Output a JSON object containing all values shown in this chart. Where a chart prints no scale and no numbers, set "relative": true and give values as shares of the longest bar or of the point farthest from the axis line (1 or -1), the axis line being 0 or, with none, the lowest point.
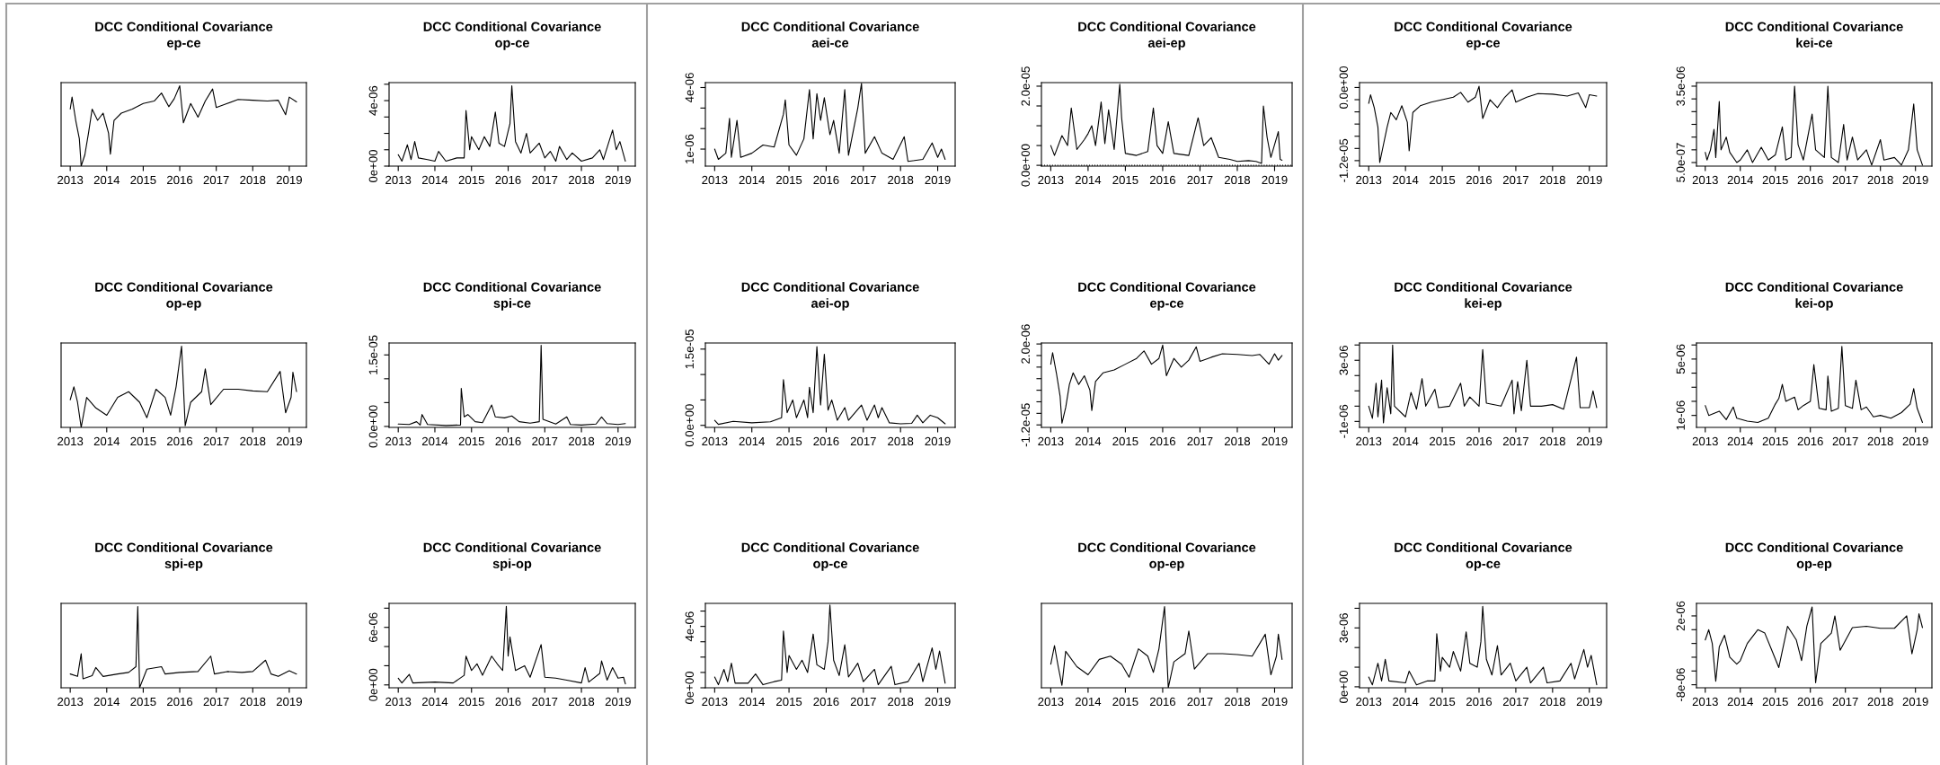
{
  "chart_data": [
    {
      "type": "line",
      "title": "DCC Conditional Covariance",
      "subtitle": "ep-ce",
      "relative": true,
      "xlim": [
        2012.75,
        2019.47
      ],
      "xticks": [
        2013,
        2014,
        2015,
        2016,
        2017,
        2018,
        2019
      ],
      "x": [
        2013.0,
        2013.05,
        2013.15,
        2013.25,
        2013.3,
        2013.4,
        2013.5,
        2013.6,
        2013.75,
        2013.9,
        2014.05,
        2014.1,
        2014.2,
        2014.4,
        2014.7,
        2015.0,
        2015.3,
        2015.5,
        2015.7,
        2015.85,
        2016.0,
        2016.1,
        2016.3,
        2016.5,
        2016.7,
        2016.9,
        2017.0,
        2017.3,
        2017.6,
        2018.0,
        2018.4,
        2018.7,
        2018.9,
        2019.0,
        2019.2
      ],
      "series": [
        {
          "color": "#000000",
          "values": [
            0.71,
            0.86,
            0.57,
            0.34,
            0,
            0.14,
            0.41,
            0.71,
            0.57,
            0.66,
            0.41,
            0.15,
            0.57,
            0.66,
            0.71,
            0.78,
            0.81,
            0.91,
            0.74,
            0.84,
            1,
            0.54,
            0.78,
            0.61,
            0.81,
            0.96,
            0.73,
            0.78,
            0.83,
            0.82,
            0.81,
            0.82,
            0.64,
            0.86,
            0.8
          ]
        }
      ]
    },
    {
      "type": "line",
      "title": "DCC Conditional Covariance",
      "subtitle": "op-ce",
      "xlim": [
        2012.75,
        2019.47
      ],
      "xticks": [
        2013,
        2014,
        2015,
        2016,
        2017,
        2018,
        2019
      ],
      "ylim": [
        0,
        5.1e-06
      ],
      "yticks": [
        {
          "value": 0,
          "label": "0e+00"
        },
        {
          "value": 1e-06,
          "label": null
        },
        {
          "value": 2e-06,
          "label": null
        },
        {
          "value": 3e-06,
          "label": null
        },
        {
          "value": 4e-06,
          "label": "4e-06"
        },
        {
          "value": 5e-06,
          "label": null
        }
      ],
      "x": [
        2013.0,
        2013.1,
        2013.25,
        2013.35,
        2013.45,
        2013.55,
        2013.8,
        2014.0,
        2014.1,
        2014.3,
        2014.6,
        2014.8,
        2014.85,
        2014.95,
        2015.0,
        2015.2,
        2015.35,
        2015.5,
        2015.65,
        2015.75,
        2015.9,
        2016.05,
        2016.1,
        2016.2,
        2016.35,
        2016.5,
        2016.6,
        2016.85,
        2017.0,
        2017.15,
        2017.3,
        2017.4,
        2017.6,
        2017.75,
        2018.0,
        2018.3,
        2018.5,
        2018.6,
        2018.85,
        2018.95,
        2019.05,
        2019.2
      ],
      "series": [
        {
          "color": "#000000",
          "values": [
            7e-07,
            3e-07,
            1.3e-06,
            4e-07,
            1.5e-06,
            5e-07,
            4e-07,
            3e-07,
            9e-07,
            3e-07,
            5e-07,
            5e-07,
            3.4e-06,
            1e-06,
            1.8e-06,
            1e-06,
            1.8e-06,
            1.2e-06,
            3.3e-06,
            1.4e-06,
            1.2e-06,
            2.6e-06,
            4.9e-06,
            1.5e-06,
            8e-07,
            2e-06,
            8e-07,
            1.4e-06,
            5e-07,
            9e-07,
            3e-07,
            1.2e-06,
            4e-07,
            8e-07,
            3e-07,
            5e-07,
            1e-06,
            4e-07,
            2.2e-06,
            1e-06,
            1.5e-06,
            3e-07
          ]
        }
      ]
    },
    {
      "type": "line",
      "title": "DCC Conditional Covariance",
      "subtitle": "aei-ce",
      "xlim": [
        2012.75,
        2019.47
      ],
      "xticks": [
        2013,
        2014,
        2015,
        2016,
        2017,
        2018,
        2019
      ],
      "ylim": [
        1.7e-07,
        4.24e-06
      ],
      "yticks": [
        {
          "value": 1e-06,
          "label": "1e-06"
        },
        {
          "value": 2e-06,
          "label": null
        },
        {
          "value": 3e-06,
          "label": null
        },
        {
          "value": 4e-06,
          "label": "4e-06"
        }
      ],
      "x": [
        2013.0,
        2013.1,
        2013.3,
        2013.4,
        2013.45,
        2013.6,
        2013.7,
        2014.0,
        2014.3,
        2014.6,
        2014.85,
        2014.9,
        2015.0,
        2015.2,
        2015.4,
        2015.55,
        2015.65,
        2015.75,
        2015.85,
        2015.95,
        2016.1,
        2016.2,
        2016.35,
        2016.5,
        2016.6,
        2016.85,
        2016.95,
        2017.05,
        2017.3,
        2017.5,
        2017.8,
        2018.1,
        2018.2,
        2018.6,
        2018.85,
        2019.0,
        2019.1,
        2019.2
      ],
      "series": [
        {
          "color": "#000000",
          "values": [
            1e-06,
            5e-07,
            8e-07,
            2.5e-06,
            6e-07,
            2.4e-06,
            6e-07,
            8e-07,
            1.2e-06,
            1.1e-06,
            2.7e-06,
            3.4e-06,
            1.2e-06,
            7e-07,
            1.5e-06,
            3.9e-06,
            1.5e-06,
            3.7e-06,
            2.4e-06,
            3.5e-06,
            1.7e-06,
            2.4e-06,
            8e-07,
            3.9e-06,
            7e-07,
            3e-06,
            4.2e-06,
            8e-07,
            1.6e-06,
            8e-07,
            5e-07,
            1.6e-06,
            4e-07,
            5e-07,
            1.3e-06,
            6e-07,
            1e-06,
            5e-07
          ]
        }
      ]
    },
    {
      "type": "line",
      "title": "DCC Conditional Covariance",
      "subtitle": "aei-ep",
      "xlim": [
        2012.75,
        2019.47
      ],
      "xticks": [
        2013,
        2014,
        2015,
        2016,
        2017,
        2018,
        2019
      ],
      "ylim": [
        -2e-07,
        2.09e-05
      ],
      "yticks": [
        {
          "value": 0,
          "label": "0.0e+00"
        },
        {
          "value": 5e-06,
          "label": null
        },
        {
          "value": 1e-05,
          "label": null
        },
        {
          "value": 1.5e-05,
          "label": null
        },
        {
          "value": 2e-05,
          "label": "2.0e-05"
        }
      ],
      "ref_lines": [
        {
          "axis": "y",
          "value": 0,
          "line_style": "dotted",
          "color": "#000000"
        }
      ],
      "x": [
        2013.0,
        2013.1,
        2013.3,
        2013.45,
        2013.55,
        2013.7,
        2013.9,
        2014.0,
        2014.1,
        2014.2,
        2014.35,
        2014.45,
        2014.55,
        2014.7,
        2014.85,
        2014.9,
        2015.0,
        2015.3,
        2015.6,
        2015.75,
        2015.85,
        2016.0,
        2016.15,
        2016.3,
        2016.7,
        2016.95,
        2017.1,
        2017.3,
        2017.5,
        2017.8,
        2018.0,
        2018.3,
        2018.5,
        2018.65,
        2018.7,
        2018.8,
        2018.9,
        2019.1,
        2019.15,
        2019.2
      ],
      "series": [
        {
          "color": "#000000",
          "values": [
            5e-06,
            2.5e-06,
            7.5e-06,
            5e-06,
            1.45e-05,
            4e-06,
            6.5e-06,
            8e-06,
            1e-05,
            5e-06,
            1.6e-05,
            5.5e-06,
            1.4e-05,
            4e-06,
            2.05e-05,
            1.2e-05,
            3e-06,
            2.5e-06,
            3.5e-06,
            1.45e-05,
            5e-06,
            3e-06,
            1.1e-05,
            3e-06,
            2.5e-06,
            1.2e-05,
            5e-06,
            7e-06,
            2e-06,
            1.5e-06,
            1e-06,
            1.2e-06,
            1e-06,
            5e-07,
            1.5e-05,
            7e-06,
            2e-06,
            8.5e-06,
            1.5e-06,
            1.3e-06
          ]
        }
      ]
    },
    {
      "type": "line",
      "title": "DCC Conditional Covariance",
      "subtitle": "ep-ce",
      "xlim": [
        2012.75,
        2019.47
      ],
      "xticks": [
        2013,
        2014,
        2015,
        2016,
        2017,
        2018,
        2019
      ],
      "ylim": [
        -1.29e-05,
        8e-07
      ],
      "yticks": [
        {
          "value": -1.2e-05,
          "label": "-1.2e-05"
        },
        {
          "value": -1e-05,
          "label": null
        },
        {
          "value": -8e-06,
          "label": null
        },
        {
          "value": -6e-06,
          "label": null
        },
        {
          "value": -4e-06,
          "label": null
        },
        {
          "value": -2e-06,
          "label": null
        },
        {
          "value": 0,
          "label": "0.0e+00"
        }
      ],
      "x": [
        2013.0,
        2013.05,
        2013.15,
        2013.25,
        2013.3,
        2013.4,
        2013.5,
        2013.6,
        2013.75,
        2013.9,
        2014.05,
        2014.1,
        2014.2,
        2014.4,
        2014.7,
        2015.0,
        2015.3,
        2015.5,
        2015.7,
        2015.9,
        2016.0,
        2016.1,
        2016.3,
        2016.5,
        2016.7,
        2016.9,
        2017.0,
        2017.3,
        2017.6,
        2018.0,
        2018.4,
        2018.7,
        2018.9,
        2019.0,
        2019.2
      ],
      "series": [
        {
          "color": "#000000",
          "values": [
            -2.6e-06,
            -1.2e-06,
            -3.3e-06,
            -6.5e-06,
            -1.23e-05,
            -9.4e-06,
            -6.5e-06,
            -4.1e-06,
            -5.3e-06,
            -3e-06,
            -5.7e-06,
            -1.04e-05,
            -4.1e-06,
            -3e-06,
            -2.4e-06,
            -2e-06,
            -1.6e-06,
            -8e-07,
            -2.4e-06,
            -1.6e-06,
            2e-07,
            -5.1e-06,
            -2e-06,
            -3.3e-06,
            -1.6e-06,
            -4e-07,
            -2.4e-06,
            -1.6e-06,
            -1e-06,
            -1.1e-06,
            -1.4e-06,
            -9e-07,
            -3.3e-06,
            -1.2e-06,
            -1.4e-06
          ]
        }
      ]
    },
    {
      "type": "line",
      "title": "DCC Conditional Covariance",
      "subtitle": "kei-ce",
      "xlim": [
        2012.75,
        2019.47
      ],
      "xticks": [
        2013,
        2014,
        2015,
        2016,
        2017,
        2018,
        2019
      ],
      "ylim": [
        3.6e-07,
        3.64e-06
      ],
      "yticks": [
        {
          "value": 5e-07,
          "label": "5.0e-07"
        },
        {
          "value": 1e-06,
          "label": null
        },
        {
          "value": 1.5e-06,
          "label": null
        },
        {
          "value": 2e-06,
          "label": null
        },
        {
          "value": 2.5e-06,
          "label": null
        },
        {
          "value": 3e-06,
          "label": null
        },
        {
          "value": 3.5e-06,
          "label": "3.5e-06"
        }
      ],
      "x": [
        2013.0,
        2013.05,
        2013.15,
        2013.25,
        2013.3,
        2013.4,
        2013.45,
        2013.6,
        2013.7,
        2013.9,
        2014.0,
        2014.2,
        2014.35,
        2014.6,
        2014.8,
        2015.0,
        2015.2,
        2015.3,
        2015.45,
        2015.55,
        2015.65,
        2015.8,
        2016.05,
        2016.15,
        2016.4,
        2016.5,
        2016.6,
        2016.8,
        2016.95,
        2017.05,
        2017.2,
        2017.35,
        2017.6,
        2017.75,
        2018.0,
        2018.1,
        2018.4,
        2018.6,
        2018.8,
        2018.95,
        2019.05,
        2019.2
      ],
      "series": [
        {
          "color": "#000000",
          "values": [
            9e-07,
            6e-07,
            1e-06,
            1.8e-06,
            7e-07,
            2.9e-06,
            1e-06,
            1.5e-06,
            9e-07,
            5e-07,
            6e-07,
            1e-06,
            5e-07,
            1.1e-06,
            6e-07,
            8e-07,
            1.9e-06,
            6e-07,
            7e-07,
            3.5e-06,
            1.2e-06,
            6e-07,
            2.4e-06,
            1e-06,
            7e-07,
            3.5e-06,
            7e-07,
            5e-07,
            2e-06,
            6e-07,
            1.5e-06,
            6e-07,
            1e-06,
            4e-07,
            1.4e-06,
            6e-07,
            7e-07,
            4e-07,
            1e-06,
            2.8e-06,
            1e-06,
            4e-07
          ]
        }
      ]
    },
    {
      "type": "line",
      "title": "DCC Conditional Covariance",
      "subtitle": "op-ep",
      "relative": true,
      "xlim": [
        2012.75,
        2019.47
      ],
      "xticks": [
        2013,
        2014,
        2015,
        2016,
        2017,
        2018,
        2019
      ],
      "x": [
        2013.0,
        2013.1,
        2013.2,
        2013.3,
        2013.45,
        2013.7,
        2014.0,
        2014.3,
        2014.6,
        2014.9,
        2015.1,
        2015.35,
        2015.6,
        2015.75,
        2015.9,
        2016.05,
        2016.15,
        2016.3,
        2016.6,
        2016.7,
        2016.85,
        2017.2,
        2017.6,
        2018.0,
        2018.4,
        2018.75,
        2018.9,
        2019.05,
        2019.1,
        2019.2
      ],
      "series": [
        {
          "color": "#000000",
          "values": [
            0.34,
            0.5,
            0.31,
            0,
            0.37,
            0.24,
            0.15,
            0.37,
            0.44,
            0.31,
            0.12,
            0.47,
            0.37,
            0.15,
            0.5,
            1,
            0.02,
            0.31,
            0.44,
            0.72,
            0.28,
            0.47,
            0.47,
            0.45,
            0.44,
            0.69,
            0.18,
            0.37,
            0.68,
            0.44
          ]
        }
      ]
    },
    {
      "type": "line",
      "title": "DCC Conditional Covariance",
      "subtitle": "spi-ce",
      "xlim": [
        2012.75,
        2019.47
      ],
      "xticks": [
        2013,
        2014,
        2015,
        2016,
        2017,
        2018,
        2019
      ],
      "ylim": [
        -2e-07,
        1.75e-05
      ],
      "yticks": [
        {
          "value": 0,
          "label": "0.0e+00"
        },
        {
          "value": 5e-06,
          "label": null
        },
        {
          "value": 1e-05,
          "label": null
        },
        {
          "value": 1.5e-05,
          "label": "1.5e-05"
        }
      ],
      "x": [
        2013.0,
        2013.3,
        2013.5,
        2013.6,
        2013.65,
        2013.8,
        2014.3,
        2014.7,
        2014.72,
        2014.8,
        2014.9,
        2015.1,
        2015.3,
        2015.55,
        2015.65,
        2015.9,
        2016.1,
        2016.3,
        2016.6,
        2016.85,
        2016.9,
        2016.95,
        2017.3,
        2017.6,
        2017.7,
        2018.0,
        2018.4,
        2018.55,
        2018.7,
        2019.0,
        2019.2
      ],
      "series": [
        {
          "color": "#000000",
          "values": [
            5e-07,
            4e-07,
            1e-06,
            3e-07,
            2.5e-06,
            4e-07,
            2e-07,
            3e-07,
            8e-06,
            2e-06,
            2.5e-06,
            1e-06,
            8e-07,
            4.5e-06,
            2e-06,
            1.8e-06,
            2.2e-06,
            1e-06,
            7e-07,
            1e-06,
            1.7e-05,
            1.5e-06,
            5e-07,
            2e-06,
            4e-07,
            3e-07,
            5e-07,
            2e-06,
            6e-07,
            4e-07,
            6e-07
          ]
        }
      ]
    },
    {
      "type": "line",
      "title": "DCC Conditional Covariance",
      "subtitle": "aei-op",
      "xlim": [
        2012.75,
        2019.47
      ],
      "xticks": [
        2013,
        2014,
        2015,
        2016,
        2017,
        2018,
        2019
      ],
      "ylim": [
        -4e-07,
        1.62e-05
      ],
      "yticks": [
        {
          "value": 0,
          "label": "0.0e+00"
        },
        {
          "value": 5e-06,
          "label": null
        },
        {
          "value": 1e-05,
          "label": null
        },
        {
          "value": 1.5e-05,
          "label": "1.5e-05"
        }
      ],
      "x": [
        2013.0,
        2013.1,
        2013.5,
        2014.0,
        2014.5,
        2014.8,
        2014.85,
        2014.95,
        2015.1,
        2015.2,
        2015.4,
        2015.5,
        2015.55,
        2015.65,
        2015.75,
        2015.85,
        2015.95,
        2016.05,
        2016.15,
        2016.3,
        2016.5,
        2016.6,
        2016.95,
        2017.1,
        2017.3,
        2017.4,
        2017.5,
        2017.7,
        2018.0,
        2018.3,
        2018.45,
        2018.6,
        2018.8,
        2019.0,
        2019.2
      ],
      "series": [
        {
          "color": "#000000",
          "values": [
            1e-06,
            2e-07,
            8e-07,
            5e-07,
            7e-07,
            1.5e-06,
            9e-06,
            2.5e-06,
            5e-06,
            1.5e-06,
            5e-06,
            1.5e-06,
            7.5e-06,
            2.5e-06,
            1.55e-05,
            4e-06,
            1.4e-05,
            3e-06,
            5e-06,
            1e-06,
            3.5e-06,
            1e-06,
            4e-06,
            1e-06,
            4e-06,
            1.5e-06,
            3.5e-06,
            5e-07,
            3e-07,
            4e-07,
            2e-06,
            5e-07,
            2e-06,
            1.5e-06,
            3e-07
          ]
        }
      ]
    },
    {
      "type": "line",
      "title": "DCC Conditional Covariance",
      "subtitle": "ep-ce",
      "xlim": [
        2012.75,
        2019.47
      ],
      "xticks": [
        2013,
        2014,
        2015,
        2016,
        2017,
        2018,
        2019
      ],
      "ylim": [
        -1.243e-05,
        2.17e-06
      ],
      "yticks": [
        {
          "value": -1.2e-05,
          "label": "-1.2e-05"
        },
        {
          "value": -1e-05,
          "label": null
        },
        {
          "value": -8e-06,
          "label": null
        },
        {
          "value": -6e-06,
          "label": null
        },
        {
          "value": -4e-06,
          "label": null
        },
        {
          "value": -2e-06,
          "label": null
        },
        {
          "value": 0,
          "label": null
        },
        {
          "value": 2e-06,
          "label": "2.0e-06"
        }
      ],
      "x": [
        2013.0,
        2013.05,
        2013.15,
        2013.25,
        2013.3,
        2013.4,
        2013.5,
        2013.6,
        2013.75,
        2013.9,
        2014.05,
        2014.1,
        2014.2,
        2014.4,
        2014.7,
        2015.0,
        2015.3,
        2015.5,
        2015.7,
        2015.9,
        2016.0,
        2016.1,
        2016.3,
        2016.5,
        2016.7,
        2016.9,
        2017.0,
        2017.3,
        2017.6,
        2018.0,
        2018.4,
        2018.6,
        2018.85,
        2019.0,
        2019.1,
        2019.2
      ],
      "series": [
        {
          "color": "#000000",
          "values": [
            -1.5e-06,
            5e-07,
            -3e-06,
            -7e-06,
            -1.17e-05,
            -9e-06,
            -5e-06,
            -3e-06,
            -5e-06,
            -3.5e-06,
            -6e-06,
            -9.5e-06,
            -4.5e-06,
            -3e-06,
            -2.5e-06,
            -1.5e-06,
            -5e-07,
            8e-07,
            -1.5e-06,
            -5e-07,
            1.8e-06,
            -3.5e-06,
            -5e-07,
            -2e-06,
            -8e-07,
            1.5e-06,
            -1e-06,
            -3e-07,
            3e-07,
            2e-07,
            0,
            2e-07,
            -1.5e-06,
            3e-07,
            -8e-07,
            0
          ]
        }
      ]
    },
    {
      "type": "line",
      "title": "DCC Conditional Covariance",
      "subtitle": "kei-ep",
      "xlim": [
        2012.75,
        2019.47
      ],
      "xticks": [
        2013,
        2014,
        2015,
        2016,
        2017,
        2018,
        2019
      ],
      "ylim": [
        -1.39e-06,
        4.13e-06
      ],
      "yticks": [
        {
          "value": -1e-06,
          "label": "-1e-06"
        },
        {
          "value": 0,
          "label": null
        },
        {
          "value": 1e-06,
          "label": null
        },
        {
          "value": 2e-06,
          "label": null
        },
        {
          "value": 3e-06,
          "label": "3e-06"
        },
        {
          "value": 4e-06,
          "label": null
        }
      ],
      "x": [
        2013.0,
        2013.1,
        2013.2,
        2013.25,
        2013.35,
        2013.4,
        2013.5,
        2013.6,
        2013.65,
        2013.7,
        2014.0,
        2014.15,
        2014.3,
        2014.45,
        2014.55,
        2014.8,
        2014.9,
        2015.2,
        2015.5,
        2015.6,
        2015.75,
        2016.0,
        2016.1,
        2016.2,
        2016.6,
        2016.9,
        2016.95,
        2017.05,
        2017.15,
        2017.3,
        2017.4,
        2017.7,
        2018.0,
        2018.3,
        2018.65,
        2018.75,
        2019.0,
        2019.1,
        2019.2
      ],
      "series": [
        {
          "color": "#000000",
          "values": [
            0,
            -8e-07,
            1.5e-06,
            -7e-07,
            1.7e-06,
            -1.1e-06,
            1.2e-06,
            -5e-07,
            4e-06,
            0,
            -7e-07,
            9e-07,
            -2e-07,
            1.8e-06,
            0,
            1.1e-06,
            -1e-07,
            0,
            1.5e-06,
            0,
            6e-07,
            0,
            3.7e-06,
            2e-07,
            0,
            1.7e-06,
            -5e-07,
            1.6e-06,
            -3e-07,
            3e-06,
            0,
            0,
            1e-07,
            -2e-07,
            3.2e-06,
            -1e-07,
            -1e-07,
            1e-06,
            -1e-07
          ]
        }
      ]
    },
    {
      "type": "line",
      "title": "DCC Conditional Covariance",
      "subtitle": "kei-op",
      "xlim": [
        2012.75,
        2019.47
      ],
      "xticks": [
        2013,
        2014,
        2015,
        2016,
        2017,
        2018,
        2019
      ],
      "ylim": [
        1.5e-07,
        6.14e-06
      ],
      "yticks": [
        {
          "value": 1e-06,
          "label": "1e-06"
        },
        {
          "value": 2e-06,
          "label": null
        },
        {
          "value": 3e-06,
          "label": null
        },
        {
          "value": 4e-06,
          "label": null
        },
        {
          "value": 5e-06,
          "label": "5e-06"
        },
        {
          "value": 6e-06,
          "label": null
        }
      ],
      "x": [
        2013.0,
        2013.1,
        2013.4,
        2013.6,
        2013.8,
        2013.9,
        2014.2,
        2014.5,
        2014.8,
        2015.0,
        2015.1,
        2015.2,
        2015.3,
        2015.55,
        2015.65,
        2015.8,
        2016.0,
        2016.1,
        2016.25,
        2016.45,
        2016.5,
        2016.6,
        2016.8,
        2016.9,
        2017.0,
        2017.2,
        2017.3,
        2017.45,
        2017.6,
        2017.8,
        2018.0,
        2018.3,
        2018.6,
        2018.85,
        2018.95,
        2019.05,
        2019.2
      ],
      "series": [
        {
          "color": "#000000",
          "values": [
            1.7e-06,
            1e-06,
            1.3e-06,
            7e-07,
            1.6e-06,
            8e-07,
            6e-07,
            5e-07,
            8e-07,
            1.8e-06,
            2.2e-06,
            3.2e-06,
            2e-06,
            2.3e-06,
            1.4e-06,
            1.7e-06,
            2e-06,
            4.6e-06,
            1.5e-06,
            1.4e-06,
            3.8e-06,
            1.3e-06,
            1.5e-06,
            5.9e-06,
            1.7e-06,
            1.5e-06,
            3.5e-06,
            1.4e-06,
            1.6e-06,
            9e-07,
            1e-06,
            8e-07,
            1.2e-06,
            1.8e-06,
            2.9e-06,
            1.5e-06,
            5e-07
          ]
        }
      ]
    },
    {
      "type": "line",
      "title": "DCC Conditional Covariance",
      "subtitle": "spi-ep",
      "relative": true,
      "xlim": [
        2012.75,
        2019.47
      ],
      "xticks": [
        2013,
        2014,
        2015,
        2016,
        2017,
        2018,
        2019
      ],
      "x": [
        2013.0,
        2013.2,
        2013.3,
        2013.35,
        2013.6,
        2013.7,
        2013.9,
        2014.3,
        2014.6,
        2014.8,
        2014.85,
        2014.9,
        2015.1,
        2015.5,
        2015.6,
        2016.0,
        2016.5,
        2016.85,
        2016.95,
        2017.3,
        2017.7,
        2018.0,
        2018.35,
        2018.5,
        2018.7,
        2019.0,
        2019.2
      ],
      "series": [
        {
          "color": "#000000",
          "values": [
            0.17,
            0.14,
            0.42,
            0.11,
            0.15,
            0.25,
            0.14,
            0.17,
            0.19,
            0.26,
            1,
            0,
            0.23,
            0.26,
            0.17,
            0.19,
            0.2,
            0.39,
            0.17,
            0.2,
            0.19,
            0.2,
            0.34,
            0.17,
            0.14,
            0.21,
            0.17
          ]
        }
      ]
    },
    {
      "type": "line",
      "title": "DCC Conditional Covariance",
      "subtitle": "spi-op",
      "xlim": [
        2012.75,
        2019.47
      ],
      "xticks": [
        2013,
        2014,
        2015,
        2016,
        2017,
        2018,
        2019
      ],
      "ylim": [
        -3e-07,
        8.5e-06
      ],
      "yticks": [
        {
          "value": 0,
          "label": "0e+00"
        },
        {
          "value": 2e-06,
          "label": null
        },
        {
          "value": 4e-06,
          "label": null
        },
        {
          "value": 6e-06,
          "label": "6e-06"
        },
        {
          "value": 8e-06,
          "label": null
        }
      ],
      "x": [
        2013.0,
        2013.1,
        2013.3,
        2013.4,
        2014.0,
        2014.5,
        2014.8,
        2014.85,
        2015.0,
        2015.15,
        2015.3,
        2015.55,
        2015.7,
        2015.85,
        2015.95,
        2016.0,
        2016.05,
        2016.2,
        2016.45,
        2016.6,
        2016.9,
        2017.0,
        2017.3,
        2017.6,
        2018.0,
        2018.1,
        2018.2,
        2018.5,
        2018.55,
        2018.7,
        2018.85,
        2019.0,
        2019.15,
        2019.2
      ],
      "series": [
        {
          "color": "#000000",
          "values": [
            7e-07,
            2e-07,
            1.1e-06,
            2e-07,
            3e-07,
            2e-07,
            1e-06,
            3e-06,
            1.5e-06,
            2.2e-06,
            1e-06,
            3e-06,
            2.2e-06,
            1.5e-06,
            8.2e-06,
            3e-06,
            5e-06,
            1.5e-06,
            2e-06,
            8e-07,
            4.2e-06,
            8e-07,
            7e-07,
            5e-07,
            2e-07,
            1.8e-06,
            3e-07,
            1.2e-06,
            2.5e-06,
            5e-07,
            1.8e-06,
            7e-07,
            8e-07,
            1e-07
          ]
        }
      ]
    },
    {
      "type": "line",
      "title": "DCC Conditional Covariance",
      "subtitle": "op-ce",
      "xlim": [
        2012.75,
        2019.47
      ],
      "xticks": [
        2013,
        2014,
        2015,
        2016,
        2017,
        2018,
        2019
      ],
      "ylim": [
        0,
        5.5e-06
      ],
      "yticks": [
        {
          "value": 0,
          "label": "0e+00"
        },
        {
          "value": 1e-06,
          "label": null
        },
        {
          "value": 2e-06,
          "label": null
        },
        {
          "value": 3e-06,
          "label": null
        },
        {
          "value": 4e-06,
          "label": "4e-06"
        },
        {
          "value": 5e-06,
          "label": null
        }
      ],
      "x": [
        2013.0,
        2013.1,
        2013.25,
        2013.35,
        2013.45,
        2013.55,
        2013.9,
        2014.1,
        2014.3,
        2014.6,
        2014.8,
        2014.85,
        2014.95,
        2015.0,
        2015.2,
        2015.35,
        2015.5,
        2015.65,
        2015.75,
        2015.95,
        2016.05,
        2016.1,
        2016.2,
        2016.35,
        2016.5,
        2016.6,
        2016.85,
        2017.0,
        2017.3,
        2017.4,
        2017.75,
        2017.85,
        2018.2,
        2018.5,
        2018.6,
        2018.85,
        2018.95,
        2019.05,
        2019.2
      ],
      "series": [
        {
          "color": "#000000",
          "values": [
            7e-07,
            2e-07,
            1.2e-06,
            4e-07,
            1.6e-06,
            3e-07,
            3e-07,
            9e-07,
            2e-07,
            4e-07,
            5e-07,
            3.7e-06,
            1e-06,
            2.1e-06,
            1.2e-06,
            1.8e-06,
            1e-06,
            3.5e-06,
            1.5e-06,
            1.2e-06,
            3e-06,
            5.4e-06,
            1.8e-06,
            8e-07,
            2.8e-06,
            7e-07,
            1.6e-06,
            4e-07,
            1.2e-06,
            2e-07,
            1.4e-06,
            2e-07,
            4e-07,
            1.6e-06,
            4e-07,
            2.6e-06,
            1.2e-06,
            2.4e-06,
            3e-07
          ]
        }
      ]
    },
    {
      "type": "line",
      "title": "DCC Conditional Covariance",
      "subtitle": "op-ep",
      "relative": true,
      "xlim": [
        2012.75,
        2019.47
      ],
      "xticks": [
        2013,
        2014,
        2015,
        2016,
        2017,
        2018,
        2019
      ],
      "x": [
        2013.0,
        2013.1,
        2013.2,
        2013.3,
        2013.4,
        2013.7,
        2014.0,
        2014.3,
        2014.6,
        2014.9,
        2015.1,
        2015.35,
        2015.6,
        2015.75,
        2015.9,
        2016.05,
        2016.15,
        2016.3,
        2016.6,
        2016.7,
        2016.85,
        2017.2,
        2017.6,
        2018.0,
        2018.4,
        2018.75,
        2018.9,
        2019.05,
        2019.1,
        2019.2
      ],
      "series": [
        {
          "color": "#000000",
          "values": [
            0.29,
            0.52,
            0.26,
            0.03,
            0.45,
            0.26,
            0.16,
            0.35,
            0.39,
            0.29,
            0.13,
            0.48,
            0.39,
            0.19,
            0.48,
            1,
            0,
            0.32,
            0.42,
            0.7,
            0.23,
            0.42,
            0.42,
            0.41,
            0.39,
            0.66,
            0.16,
            0.39,
            0.66,
            0.35
          ]
        }
      ]
    },
    {
      "type": "line",
      "title": "DCC Conditional Covariance",
      "subtitle": "op-ce",
      "xlim": [
        2012.75,
        2019.47
      ],
      "xticks": [
        2013,
        2014,
        2015,
        2016,
        2017,
        2018,
        2019
      ],
      "ylim": [
        -5e-08,
        4.25e-06
      ],
      "yticks": [
        {
          "value": 0,
          "label": "0e+00"
        },
        {
          "value": 1e-06,
          "label": null
        },
        {
          "value": 2e-06,
          "label": null
        },
        {
          "value": 3e-06,
          "label": "3e-06"
        },
        {
          "value": 4e-06,
          "label": null
        }
      ],
      "x": [
        2013.0,
        2013.1,
        2013.25,
        2013.35,
        2013.45,
        2013.55,
        2014.0,
        2014.1,
        2014.3,
        2014.6,
        2014.8,
        2014.85,
        2014.95,
        2015.0,
        2015.2,
        2015.3,
        2015.5,
        2015.65,
        2015.75,
        2015.95,
        2016.05,
        2016.1,
        2016.2,
        2016.35,
        2016.5,
        2016.6,
        2016.85,
        2017.0,
        2017.3,
        2017.4,
        2017.75,
        2017.85,
        2018.2,
        2018.5,
        2018.6,
        2018.85,
        2018.95,
        2019.05,
        2019.2
      ],
      "series": [
        {
          "color": "#000000",
          "values": [
            5e-07,
            1e-07,
            1.2e-06,
            3e-07,
            1.4e-06,
            3e-07,
            2e-07,
            8e-07,
            1e-07,
            3e-07,
            3e-07,
            2.7e-06,
            8e-07,
            1.5e-06,
            1e-06,
            1.8e-06,
            8e-07,
            2.8e-06,
            1.2e-06,
            1e-06,
            2.3e-06,
            4.1e-06,
            1.4e-06,
            6e-07,
            2.1e-06,
            6e-07,
            1.2e-06,
            3e-07,
            1e-06,
            2e-07,
            1e-06,
            2e-07,
            3e-07,
            1.2e-06,
            4e-07,
            1.9e-06,
            1e-06,
            1.6e-06,
            1e-07
          ]
        }
      ]
    },
    {
      "type": "line",
      "title": "DCC Conditional Covariance",
      "subtitle": "op-ep",
      "xlim": [
        2012.75,
        2019.47
      ],
      "xticks": [
        2013,
        2014,
        2015,
        2016,
        2017,
        2018,
        2019
      ],
      "ylim": [
        -8.44e-06,
        3.82e-06
      ],
      "yticks": [
        {
          "value": -8e-06,
          "label": "-8e-06"
        },
        {
          "value": -6e-06,
          "label": null
        },
        {
          "value": -4e-06,
          "label": null
        },
        {
          "value": -2e-06,
          "label": null
        },
        {
          "value": 0,
          "label": null
        },
        {
          "value": 2e-06,
          "label": "2e-06"
        }
      ],
      "x": [
        2013.0,
        2013.1,
        2013.2,
        2013.3,
        2013.4,
        2013.55,
        2013.7,
        2013.9,
        2014.0,
        2014.2,
        2014.5,
        2014.7,
        2014.9,
        2015.1,
        2015.35,
        2015.6,
        2015.75,
        2015.9,
        2016.05,
        2016.15,
        2016.3,
        2016.6,
        2016.7,
        2016.85,
        2017.2,
        2017.6,
        2018.0,
        2018.4,
        2018.75,
        2018.9,
        2019.05,
        2019.1,
        2019.2
      ],
      "series": [
        {
          "color": "#000000",
          "values": [
            -1.5e-06,
            0,
            -2e-06,
            -7.5e-06,
            -2.5e-06,
            -8e-07,
            -4e-06,
            -5e-06,
            -4.5e-06,
            -2e-06,
            0,
            -5e-07,
            -3e-06,
            -5.5e-06,
            5e-07,
            -1.5e-06,
            -4.5e-06,
            5e-07,
            3.3e-06,
            -7.7e-06,
            -2e-06,
            -5e-07,
            2e-06,
            -3e-06,
            3e-07,
            5e-07,
            2e-07,
            2e-07,
            2e-06,
            -3.5e-06,
            0,
            2.3e-06,
            3e-07
          ]
        }
      ]
    }
  ]
}
